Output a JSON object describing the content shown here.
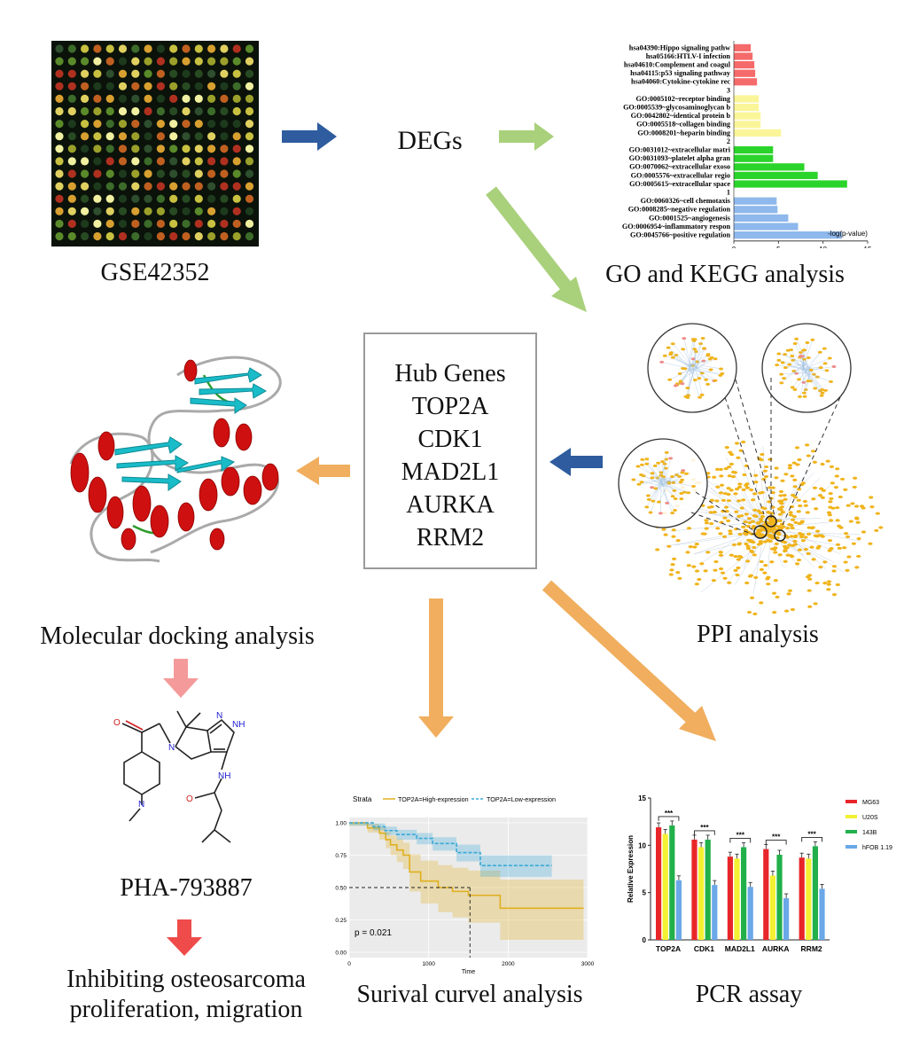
{
  "captions": {
    "gse": "GSE42352",
    "degs": "DEGs",
    "go_kegg": "GO and KEGG analysis",
    "molecular": "Molecular docking analysis",
    "ppi": "PPI analysis",
    "compound": "PHA-793887",
    "inhibiting_line1": "Inhibiting osteosarcoma",
    "inhibiting_line2": "proliferation, migration",
    "survival": "Surival curvel analysis",
    "pcr": "PCR assay"
  },
  "hub_box": {
    "title": "Hub Genes",
    "genes": [
      "TOP2A",
      "CDK1",
      "MAD2L1",
      "AURKA",
      "RRM2"
    ]
  },
  "molecule_labels": {
    "o1": "O",
    "n1": "N",
    "n2": "N",
    "nh1": "NH",
    "n3": "N",
    "nh2": "NH",
    "o2": "O"
  },
  "colors": {
    "blue_arrow": "#2e5c9e",
    "green_arrow": "#a9d07b",
    "orange_arrow": "#f0ae5e",
    "pink_arrow": "#f59a9a",
    "red_arrow": "#ef4b4b"
  },
  "chart_data": [
    {
      "type": "bar",
      "orientation": "horizontal",
      "xlabel": "-log(p-value)",
      "xlim": [
        0,
        15
      ],
      "xticks": [
        "0",
        "5",
        "10",
        "15"
      ],
      "groups": [
        {
          "label": "",
          "color": "#f56b6b",
          "categories": [
            "hsa04390:Hippo signaling pathw",
            "hsa05166:HTLV-I infection",
            "hsa04610:Complement and coagul",
            "hsa04115:p53 signaling pathway",
            "hsa04060:Cytokine-cytokine rec"
          ],
          "values": [
            1.9,
            2.1,
            2.3,
            2.4,
            2.6
          ]
        },
        {
          "label": "3",
          "color": "#fbf59a",
          "categories": [
            "GO:0005102~receptor binding",
            "GO:0005539~glycosaminoglycan b",
            "GO:0042802~identical protein b",
            "GO:0005518~collagen binding",
            "GO:0008201~heparin binding"
          ],
          "values": [
            2.8,
            2.8,
            3.0,
            3.0,
            5.3
          ]
        },
        {
          "label": "2",
          "color": "#2bd42b",
          "categories": [
            "GO:0031012~extracellular matri",
            "GO:0031093~platelet alpha gran",
            "GO:0070062~extracellular exoso",
            "GO:0005576~extracellular regio",
            "GO:0005615~extracellular space"
          ],
          "values": [
            4.4,
            4.4,
            7.9,
            9.4,
            12.7
          ]
        },
        {
          "label": "1",
          "color": "#8fb8ec",
          "categories": [
            "GO:0060326~cell chemotaxis",
            "GO:0008285~negative regulation",
            "GO:0001525~angiogenesis",
            "GO:0006954~inflammatory respon",
            "GO:0045766~positive regulation"
          ],
          "values": [
            4.8,
            4.9,
            6.1,
            7.2,
            12.1
          ]
        }
      ]
    },
    {
      "type": "line",
      "legend_title": "Strata",
      "xlabel": "Time",
      "xlim": [
        0,
        3000
      ],
      "ylim": [
        0,
        1
      ],
      "xticks": [
        "0",
        "1000",
        "2000",
        "3000"
      ],
      "yticks": [
        "0.00",
        "0.25",
        "0.50",
        "0.75",
        "1.00"
      ],
      "annotation": "p = 0.021",
      "series": [
        {
          "name": "TOP2A=High-expression",
          "color": "#e0b020",
          "x": [
            0,
            230,
            380,
            460,
            520,
            600,
            680,
            760,
            900,
            1120,
            1300,
            1500,
            1900,
            2950
          ],
          "y": [
            1.0,
            0.96,
            0.92,
            0.87,
            0.83,
            0.79,
            0.75,
            0.62,
            0.55,
            0.5,
            0.47,
            0.44,
            0.34,
            0.34
          ]
        },
        {
          "name": "TOP2A=Low-expression",
          "color": "#3aa8d8",
          "x": [
            0,
            300,
            450,
            600,
            850,
            1050,
            1350,
            1650,
            2550
          ],
          "y": [
            1.0,
            0.97,
            0.94,
            0.91,
            0.88,
            0.84,
            0.77,
            0.67,
            0.67
          ]
        }
      ]
    },
    {
      "type": "bar",
      "ylabel": "Relative Expression",
      "ylim": [
        0,
        15
      ],
      "yticks": [
        "0",
        "5",
        "10",
        "15"
      ],
      "categories": [
        "TOP2A",
        "CDK1",
        "MAD2L1",
        "AURKA",
        "RRM2"
      ],
      "significance": [
        "***",
        "***",
        "***",
        "***",
        "***"
      ],
      "series": [
        {
          "name": "MG63",
          "color": "#e8262a",
          "values": [
            11.9,
            10.6,
            8.8,
            9.6,
            8.7
          ]
        },
        {
          "name": "U20S",
          "color": "#f4f032",
          "values": [
            11.2,
            9.8,
            8.6,
            6.8,
            8.6
          ]
        },
        {
          "name": "143B",
          "color": "#22b04b",
          "values": [
            12.1,
            10.6,
            9.8,
            9.0,
            9.9
          ]
        },
        {
          "name": "hFOB 1.19",
          "color": "#6aa8e8",
          "values": [
            6.3,
            5.8,
            5.6,
            4.4,
            5.4
          ]
        }
      ]
    }
  ]
}
